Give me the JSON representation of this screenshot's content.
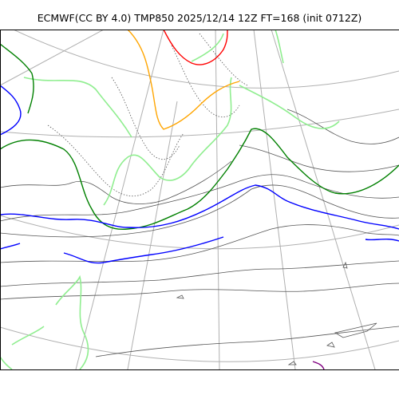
{
  "title": "ECMWF(CC BY 4.0) TMP850 2025/12/14 12Z FT=168 (init 0712Z)",
  "colors": {
    "background": "#ffffff",
    "graticule": "#b0b0b0",
    "contour_minor": "#555555",
    "contour_green_light": "#90ee90",
    "contour_green_dark": "#008000",
    "contour_blue": "#0000ff",
    "contour_orange": "#ffa500",
    "contour_red": "#ff0000",
    "contour_purple": "#800080",
    "frame": "#000000"
  }
}
